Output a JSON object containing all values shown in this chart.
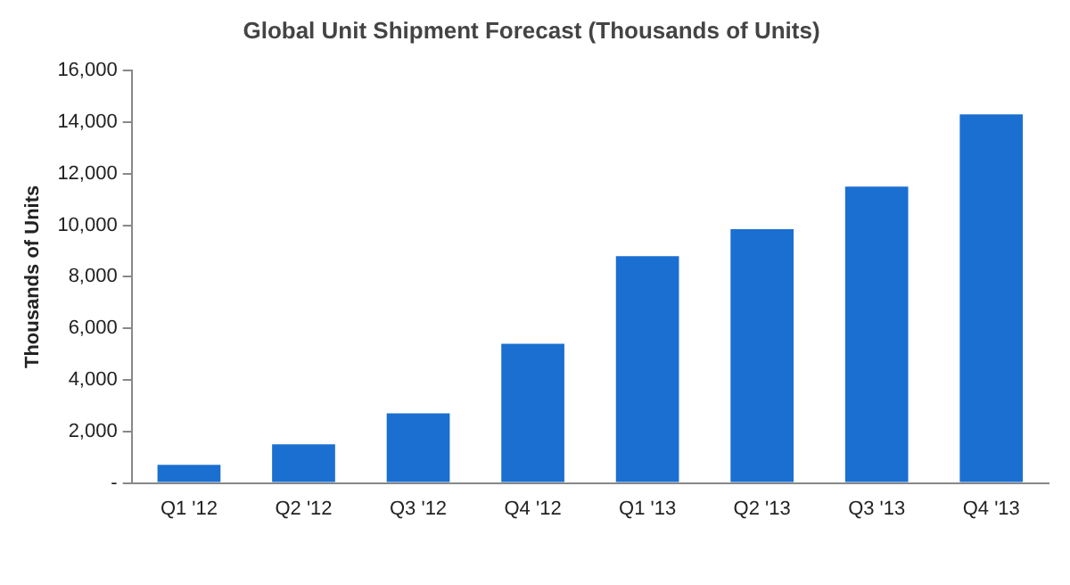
{
  "chart_data": {
    "type": "bar",
    "title": "Global Unit Shipment Forecast (Thousands of Units)",
    "ylabel": "Thousands of Units",
    "categories": [
      "Q1 '12",
      "Q2 '12",
      "Q3 '12",
      "Q4 '12",
      "Q1 '13",
      "Q2 '13",
      "Q3 '13",
      "Q4 '13"
    ],
    "values": [
      700,
      1500,
      2700,
      5400,
      8800,
      9850,
      11500,
      14300
    ],
    "color": "#1a6fd1",
    "ylim": [
      0,
      16000
    ],
    "yticks": [
      {
        "value": 0,
        "label": "-"
      },
      {
        "value": 2000,
        "label": "2,000"
      },
      {
        "value": 4000,
        "label": "4,000"
      },
      {
        "value": 6000,
        "label": "6,000"
      },
      {
        "value": 8000,
        "label": "8,000"
      },
      {
        "value": 10000,
        "label": "10,000"
      },
      {
        "value": 12000,
        "label": "12,000"
      },
      {
        "value": 14000,
        "label": "14,000"
      },
      {
        "value": 16000,
        "label": "16,000"
      }
    ],
    "grid": false,
    "legend": false
  }
}
